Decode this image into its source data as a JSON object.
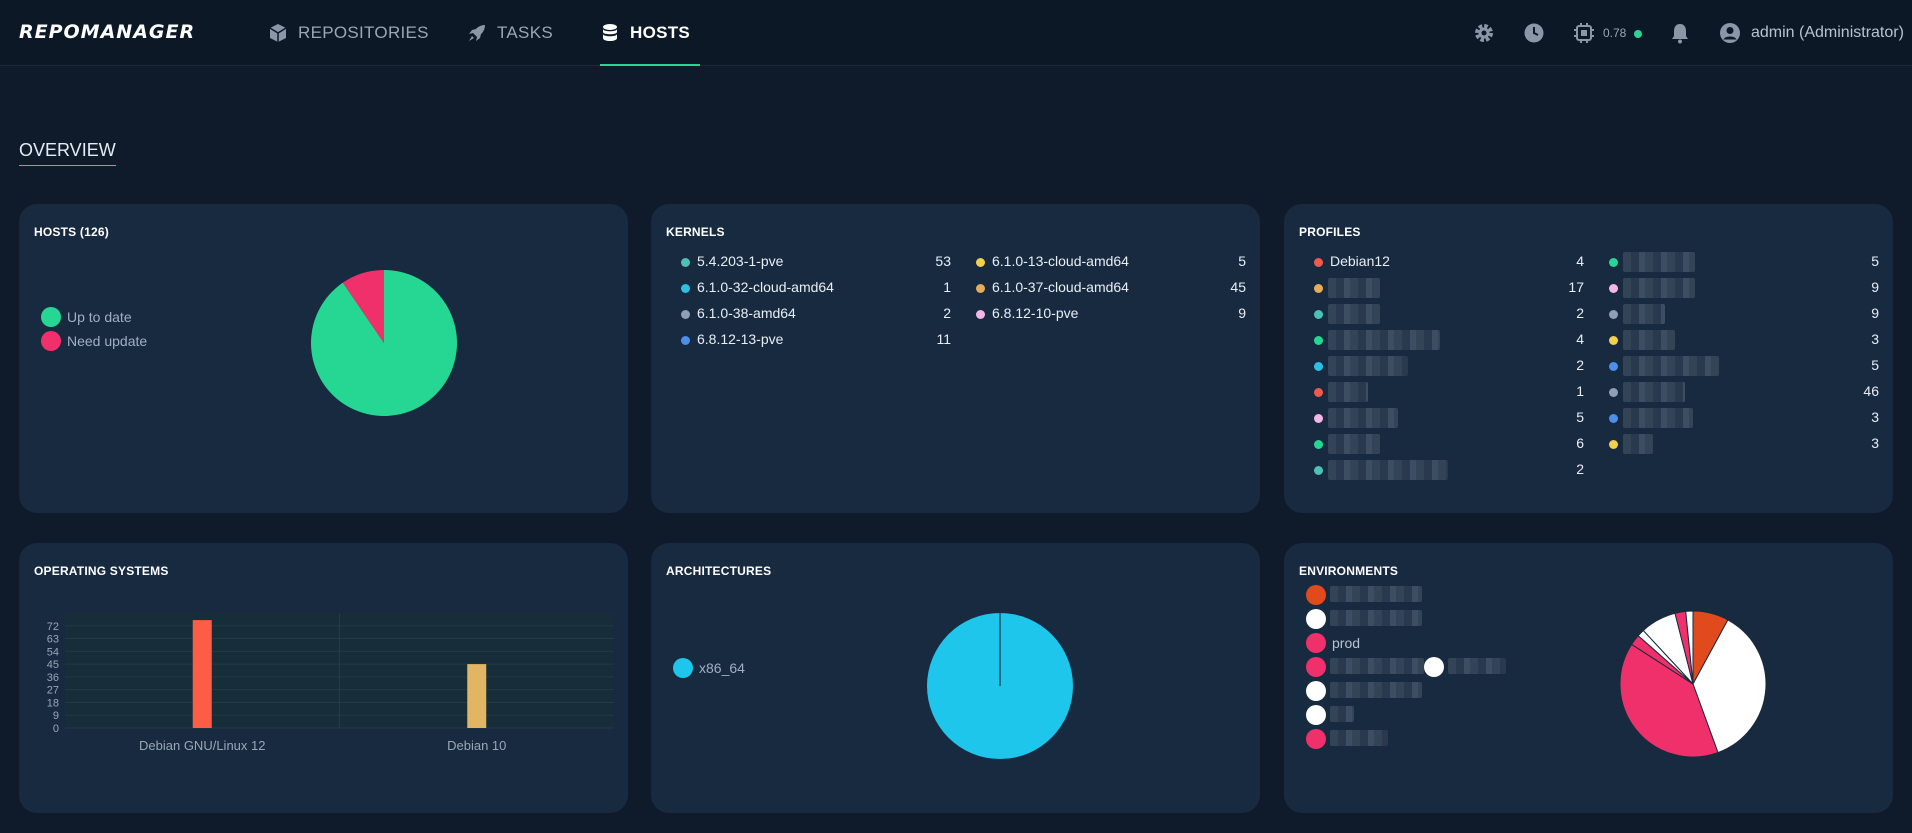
{
  "app": {
    "logo": "REPOMANAGER"
  },
  "nav": [
    {
      "label": "REPOSITORIES",
      "icon": "cube-icon"
    },
    {
      "label": "TASKS",
      "icon": "rocket-icon"
    },
    {
      "label": "HOSTS",
      "icon": "database-icon",
      "active": true
    }
  ],
  "header": {
    "cpu_load": "0.78",
    "user": "admin (Administrator)"
  },
  "overview": {
    "title": "OVERVIEW"
  },
  "hosts": {
    "title": "HOSTS (126)",
    "legend": [
      {
        "label": "Up to date",
        "color": "#26d794"
      },
      {
        "label": "Need update",
        "color": "#f0306a"
      }
    ],
    "chart_data": {
      "type": "pie",
      "slices": [
        {
          "label": "Up to date",
          "value": 114,
          "color": "#26d794"
        },
        {
          "label": "Need update",
          "value": 12,
          "color": "#f0306a"
        }
      ]
    }
  },
  "kernels": {
    "title": "KERNELS",
    "col1": [
      {
        "label": "5.4.203-1-pve",
        "count": "53",
        "color": "#4ec0b6"
      },
      {
        "label": "6.1.0-32-cloud-amd64",
        "count": "1",
        "color": "#2cc0e4"
      },
      {
        "label": "6.1.0-38-amd64",
        "count": "2",
        "color": "#8fa0b4"
      },
      {
        "label": "6.8.12-13-pve",
        "count": "11",
        "color": "#4d8ee8"
      }
    ],
    "col2": [
      {
        "label": "6.1.0-13-cloud-amd64",
        "count": "5",
        "color": "#f2d04c"
      },
      {
        "label": "6.1.0-37-cloud-amd64",
        "count": "45",
        "color": "#e6ac5a"
      },
      {
        "label": "6.8.12-10-pve",
        "count": "9",
        "color": "#f4b6e8"
      }
    ]
  },
  "profiles": {
    "title": "PROFILES",
    "col1": [
      {
        "label": "Debian12",
        "count": "4",
        "color": "#f05a4c"
      },
      {
        "label": "",
        "count": "17",
        "color": "#e6ac5a",
        "blur_w": 52
      },
      {
        "label": "",
        "count": "2",
        "color": "#4ec0b6",
        "blur_w": 52
      },
      {
        "label": "",
        "count": "4",
        "color": "#26d794",
        "blur_w": 112
      },
      {
        "label": "",
        "count": "2",
        "color": "#2cc0e4",
        "blur_w": 80
      },
      {
        "label": "",
        "count": "1",
        "color": "#f05a4c",
        "blur_w": 40
      },
      {
        "label": "",
        "count": "5",
        "color": "#f4b6e8",
        "blur_w": 70
      },
      {
        "label": "",
        "count": "6",
        "color": "#26d794",
        "blur_w": 52
      },
      {
        "label": "",
        "count": "2",
        "color": "#4ec0b6",
        "blur_w": 120
      }
    ],
    "col2": [
      {
        "label": "",
        "count": "5",
        "color": "#26d794",
        "blur_w": 72
      },
      {
        "label": "",
        "count": "9",
        "color": "#f4b6e8",
        "blur_w": 72
      },
      {
        "label": "",
        "count": "9",
        "color": "#8fa0b4",
        "blur_w": 42
      },
      {
        "label": "",
        "count": "3",
        "color": "#f2d04c",
        "blur_w": 52
      },
      {
        "label": "",
        "count": "5",
        "color": "#4d8ee8",
        "blur_w": 96
      },
      {
        "label": "",
        "count": "46",
        "color": "#8fa0b4",
        "blur_w": 62
      },
      {
        "label": "",
        "count": "3",
        "color": "#4d8ee8",
        "blur_w": 70
      },
      {
        "label": "",
        "count": "3",
        "color": "#f2d04c",
        "blur_w": 30
      }
    ]
  },
  "os": {
    "title": "OPERATING SYSTEMS",
    "chart_data": {
      "type": "bar",
      "categories": [
        "Debian GNU/Linux 12",
        "Debian 10"
      ],
      "values": [
        76,
        45
      ],
      "colors": [
        "#fc5e45",
        "#e2b565"
      ],
      "yticks": [
        "0",
        "9",
        "18",
        "27",
        "36",
        "45",
        "54",
        "63",
        "72"
      ],
      "ylim": [
        0,
        81
      ]
    }
  },
  "architectures": {
    "title": "ARCHITECTURES",
    "legend": [
      {
        "label": "x86_64",
        "color": "#1ec6ec"
      }
    ],
    "chart_data": {
      "type": "pie",
      "slices": [
        {
          "label": "x86_64",
          "value": 126,
          "color": "#1ec6ec"
        }
      ]
    }
  },
  "environments": {
    "title": "ENVIRONMENTS",
    "legend": [
      {
        "label": "",
        "color": "#e04a1c",
        "blur_w": 92
      },
      {
        "label": "",
        "color": "#ffffff",
        "blur_w": 92
      },
      {
        "label": "prod",
        "color": "#f0306a"
      },
      {
        "label": "",
        "color": "#f0306a",
        "blur_w": 94
      },
      {
        "label": "",
        "color": "#ffffff",
        "blur_w": 92
      },
      {
        "label": "",
        "color": "#ffffff",
        "blur_w": 24
      },
      {
        "label": "",
        "color": "#f0306a",
        "blur_w": 58
      }
    ],
    "extra_legend": {
      "label": "",
      "color": "#ffffff",
      "blur_w": 58
    },
    "chart_data": {
      "type": "pie",
      "slices": [
        {
          "value": 10,
          "color": "#e04a1c"
        },
        {
          "value": 46,
          "color": "#ffffff"
        },
        {
          "value": 50,
          "color": "#f0306a"
        },
        {
          "value": 3,
          "color": "#f0306a"
        },
        {
          "value": 2,
          "color": "#ffffff"
        },
        {
          "value": 10,
          "color": "#ffffff"
        },
        {
          "value": 3,
          "color": "#f0306a"
        },
        {
          "value": 2,
          "color": "#ffffff"
        }
      ]
    }
  }
}
